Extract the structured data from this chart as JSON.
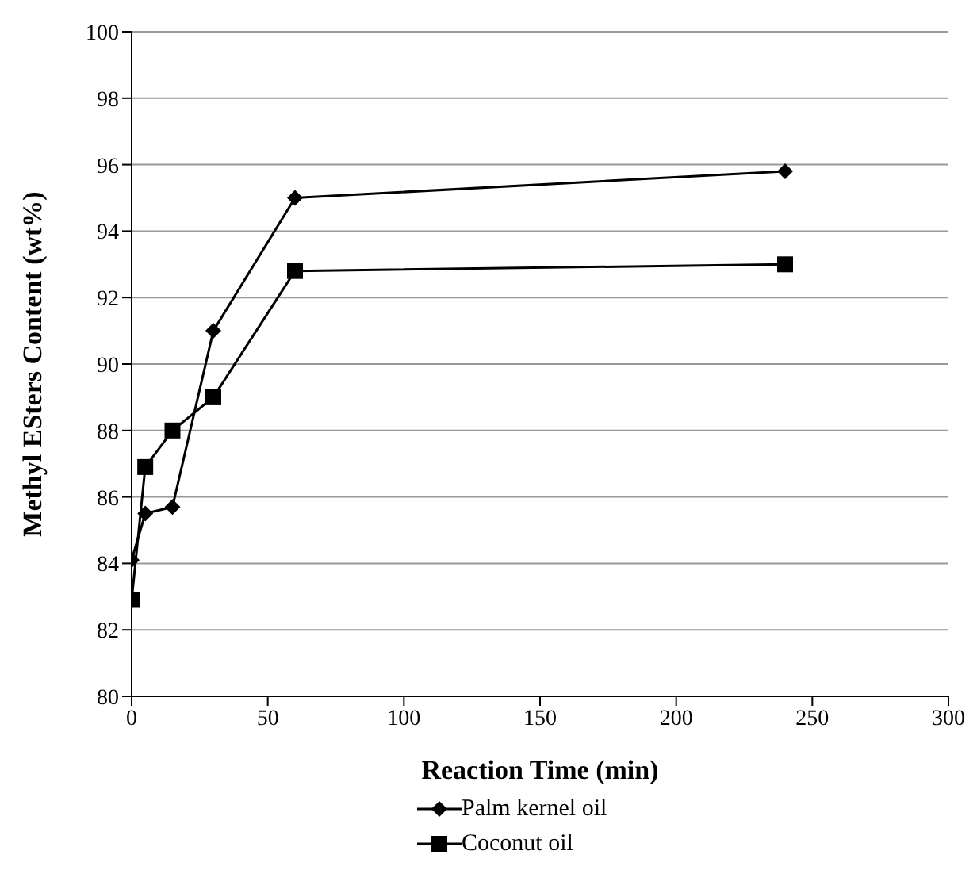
{
  "chart_data": {
    "type": "line",
    "xlabel": "Reaction Time (min)",
    "ylabel": "Methyl ESters Content (wt%)",
    "x": [
      0,
      5,
      15,
      30,
      60,
      240
    ],
    "series": [
      {
        "name": "Palm kernel oil",
        "color": "#000000",
        "marker": "diamond",
        "values": [
          84.1,
          85.5,
          85.7,
          91.0,
          95.0,
          95.8
        ]
      },
      {
        "name": "Coconut oil",
        "color": "#000000",
        "marker": "square",
        "values": [
          82.9,
          86.9,
          88.0,
          89.0,
          92.8,
          93.0
        ]
      }
    ],
    "xlim": [
      0,
      300
    ],
    "xticks": [
      0,
      50,
      100,
      150,
      200,
      250,
      300
    ],
    "ylim": [
      80,
      100
    ],
    "yticks": [
      80,
      82,
      84,
      86,
      88,
      90,
      92,
      94,
      96,
      98,
      100
    ],
    "grid": "y",
    "legend": "bottom",
    "line_style": "solid"
  }
}
